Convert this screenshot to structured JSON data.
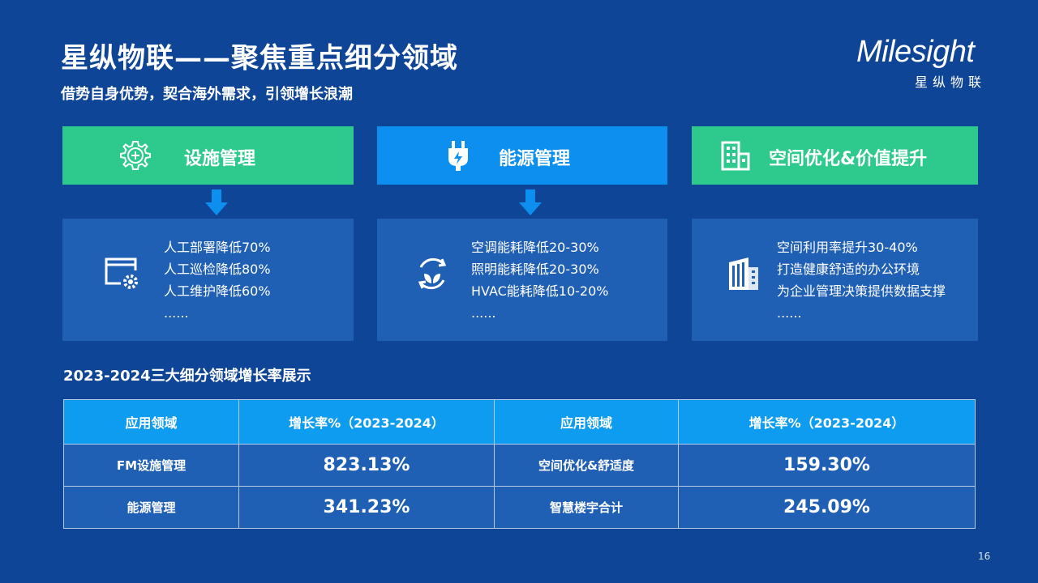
{
  "header": {
    "title": "星纵物联——聚焦重点细分领域",
    "subtitle": "借势自身优势，契合海外需求，引领增长浪潮"
  },
  "logo": {
    "text": "Milesight",
    "subtext": "星纵物联"
  },
  "colors": {
    "background": "#0f4596",
    "green_header": "#2ec98c",
    "blue_header": "#0d8ff0",
    "detail_box": "#1f5fb4",
    "table_header": "#0e9cf0"
  },
  "cards": [
    {
      "title": "设施管理",
      "header_icon": "gear-plus-icon",
      "body_icon": "window-gear-icon",
      "items": [
        "人工部署降低70%",
        "人工巡检降低80%",
        "人工维护降低60%",
        "......"
      ]
    },
    {
      "title": "能源管理",
      "header_icon": "plug-icon",
      "body_icon": "leaf-cycle-icon",
      "items": [
        "空调能耗降低20-30%",
        "照明能耗降低20-30%",
        "HVAC能耗降低10-20%",
        "......"
      ]
    },
    {
      "title": "空间优化&价值提升",
      "header_icon": "building-icon",
      "body_icon": "office-building-icon",
      "items": [
        "空间利用率提升30-40%",
        "打造健康舒适的办公环境",
        "为企业管理决策提供数据支撑",
        "......"
      ]
    }
  ],
  "table_section": {
    "heading": "2023-2024三大细分领域增长率展示",
    "columns": [
      "应用领域",
      "增长率%（2023-2024）",
      "应用领域",
      "增长率%（2023-2024）"
    ],
    "rows": [
      [
        "FM设施管理",
        "823.13%",
        "空间优化&舒适度",
        "159.30%"
      ],
      [
        "能源管理",
        "341.23%",
        "智慧楼宇合计",
        "245.09%"
      ]
    ]
  },
  "page_number": "16"
}
